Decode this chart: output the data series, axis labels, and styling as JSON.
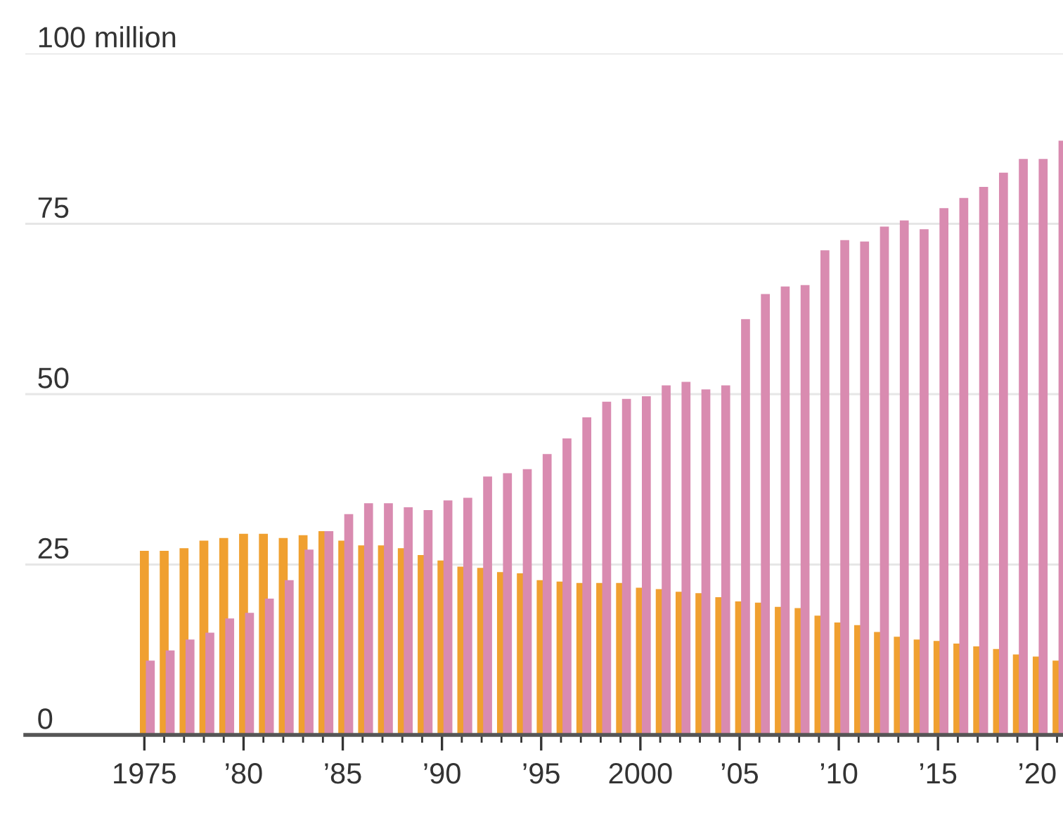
{
  "chart_data": {
    "type": "bar",
    "x": [
      1975,
      1976,
      1977,
      1978,
      1979,
      1980,
      1981,
      1982,
      1983,
      1984,
      1985,
      1986,
      1987,
      1988,
      1989,
      1990,
      1991,
      1992,
      1993,
      1994,
      1995,
      1996,
      1997,
      1998,
      1999,
      2000,
      2001,
      2002,
      2003,
      2004,
      2005,
      2006,
      2007,
      2008,
      2009,
      2010,
      2011,
      2012,
      2013,
      2014,
      2015,
      2016,
      2017,
      2018,
      2019,
      2020,
      2021
    ],
    "series": [
      {
        "color": "#f0a030",
        "values": [
          27,
          27,
          27.4,
          28.5,
          28.9,
          29.5,
          29.5,
          28.9,
          29.3,
          29.9,
          28.5,
          27.8,
          27.8,
          27.4,
          26.4,
          25.6,
          24.7,
          24.5,
          23.9,
          23.7,
          22.7,
          22.5,
          22.3,
          22.3,
          22.3,
          21.6,
          21.4,
          21,
          20.8,
          20.2,
          19.6,
          19.4,
          18.8,
          18.6,
          17.5,
          16.5,
          16.1,
          15.1,
          14.4,
          14,
          13.8,
          13.4,
          13,
          12.6,
          11.8,
          11.5,
          10.9
        ]
      },
      {
        "color": "#d98bb0",
        "values": [
          10.9,
          12.4,
          14,
          15,
          17.1,
          17.9,
          20,
          22.7,
          27.2,
          29.9,
          32.4,
          34,
          34,
          33.4,
          33,
          34.4,
          34.8,
          37.9,
          38.4,
          39,
          41.2,
          43.5,
          46.6,
          48.9,
          49.3,
          49.7,
          51.3,
          51.8,
          50.7,
          51.3,
          61,
          64.7,
          65.8,
          66,
          71.1,
          72.6,
          72.4,
          74.6,
          75.5,
          74.2,
          77.3,
          78.8,
          80.4,
          82.5,
          84.5,
          84.5,
          87.2
        ]
      }
    ],
    "xlim": [
      1969,
      2021.3
    ],
    "xticks": [
      {
        "value": 1975,
        "label": "1975"
      },
      {
        "value": 1980,
        "label": "’80"
      },
      {
        "value": 1985,
        "label": "’85"
      },
      {
        "value": 1990,
        "label": "’90"
      },
      {
        "value": 1995,
        "label": "’95"
      },
      {
        "value": 2000,
        "label": "2000"
      },
      {
        "value": 2005,
        "label": "’05"
      },
      {
        "value": 2010,
        "label": "’10"
      },
      {
        "value": 2015,
        "label": "’15"
      },
      {
        "value": 2020,
        "label": "’20"
      }
    ],
    "ylim": [
      0,
      100
    ],
    "yticks": [
      0,
      25,
      50,
      75,
      {
        "value": 100,
        "label": "100 million"
      }
    ],
    "grid": "y"
  }
}
